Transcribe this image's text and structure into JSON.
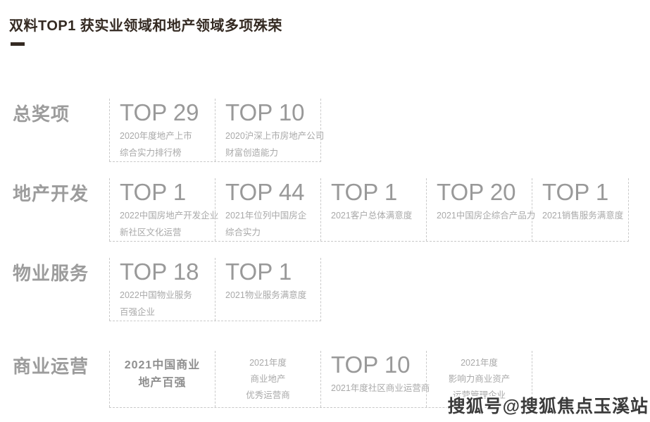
{
  "title": "双料TOP1 获实业领域和地产领域多项殊荣",
  "watermark": "搜狐号@搜狐焦点玉溪站",
  "colors": {
    "title_color": "#342a22",
    "label_color": "#9c9c9c",
    "value_color": "#999999",
    "desc_color": "#a9a9a9",
    "bold_color": "#8f8f8f",
    "dash_color": "#c9c9c9",
    "watermark_color": "#3b3b3b"
  },
  "rows": [
    {
      "label": "总奖项",
      "cells": [
        {
          "type": "top",
          "value": "TOP 29",
          "desc": [
            "2020年度地产上市",
            "综合实力排行榜"
          ]
        },
        {
          "type": "top",
          "value": "TOP 10",
          "desc": [
            "2020沪深上市房地产公司",
            "财富创造能力"
          ]
        }
      ]
    },
    {
      "label": "地产开发",
      "cells": [
        {
          "type": "top",
          "value": "TOP 1",
          "desc": [
            "2022中国房地产开发企业",
            "新社区文化运营"
          ]
        },
        {
          "type": "top",
          "value": "TOP 44",
          "desc": [
            "2021年位列中国房企",
            "综合实力"
          ]
        },
        {
          "type": "top",
          "value": "TOP 1",
          "desc": [
            "2021客户总体满意度"
          ]
        },
        {
          "type": "top",
          "value": "TOP 20",
          "desc": [
            "2021中国房企综合产品力"
          ]
        },
        {
          "type": "top",
          "value": "TOP 1",
          "desc": [
            "2021销售服务满意度"
          ]
        }
      ]
    },
    {
      "label": "物业服务",
      "cells": [
        {
          "type": "top",
          "value": "TOP 18",
          "desc": [
            "2022中国物业服务",
            "百强企业"
          ]
        },
        {
          "type": "top",
          "value": "TOP 1",
          "desc": [
            "2021物业服务满意度"
          ]
        }
      ]
    },
    {
      "label": "商业运营",
      "cells": [
        {
          "type": "bold-center",
          "lines": [
            "2021中国商业",
            "地产百强"
          ]
        },
        {
          "type": "center",
          "lines": [
            "2021年度",
            "商业地产",
            "优秀运营商"
          ]
        },
        {
          "type": "top",
          "value": "TOP 10",
          "desc": [
            "2021年度社区商业运营商"
          ]
        },
        {
          "type": "center",
          "lines": [
            "2021年度",
            "影响力商业资产",
            "运营管理企业"
          ]
        }
      ]
    }
  ]
}
